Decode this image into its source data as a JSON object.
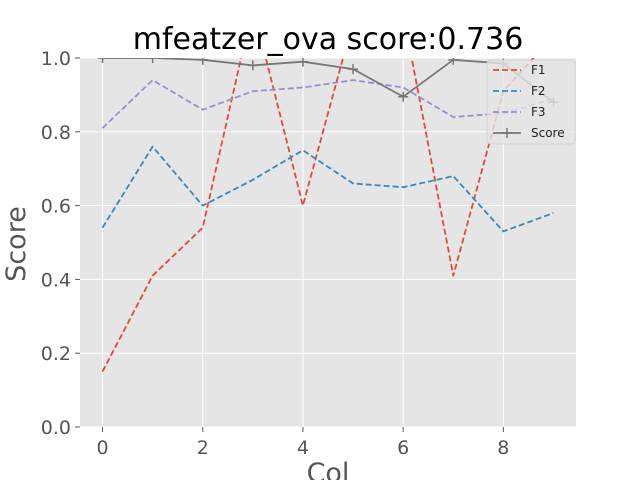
{
  "chart_data": {
    "type": "line",
    "title": "mfeatzer_ova score:0.736",
    "xlabel": "Col",
    "ylabel": "Score",
    "x": [
      0,
      1,
      2,
      3,
      4,
      5,
      6,
      7,
      8,
      9
    ],
    "xlim": [
      -0.45,
      9.45
    ],
    "ylim": [
      0.0,
      1.0
    ],
    "xticks": [
      0,
      2,
      4,
      6,
      8
    ],
    "yticks": [
      0.0,
      0.2,
      0.4,
      0.6,
      0.8,
      1.0
    ],
    "xtick_labels": [
      "0",
      "2",
      "4",
      "6",
      "8"
    ],
    "ytick_labels": [
      "0.0",
      "0.2",
      "0.4",
      "0.6",
      "0.8",
      "1.0"
    ],
    "grid": true,
    "legend_position": "top-right",
    "background": "#e5e5e5",
    "series": [
      {
        "name": "F1",
        "color": "#e24a33",
        "style": "dashed",
        "values": [
          0.15,
          0.41,
          0.54,
          1.14,
          0.6,
          1.1,
          1.12,
          0.41,
          0.91,
          1.06
        ]
      },
      {
        "name": "F2",
        "color": "#348abd",
        "style": "dashed",
        "values": [
          0.54,
          0.76,
          0.6,
          0.67,
          0.75,
          0.66,
          0.65,
          0.68,
          0.53,
          0.58
        ]
      },
      {
        "name": "F3",
        "color": "#988ed5",
        "style": "dashed",
        "values": [
          0.81,
          0.94,
          0.86,
          0.91,
          0.92,
          0.94,
          0.92,
          0.84,
          0.85,
          0.89
        ]
      },
      {
        "name": "Score",
        "color": "#777777",
        "style": "solid",
        "marker": "plus",
        "values": [
          1.0,
          1.0,
          0.995,
          0.98,
          0.99,
          0.97,
          0.895,
          0.995,
          0.985,
          0.88
        ]
      }
    ]
  }
}
